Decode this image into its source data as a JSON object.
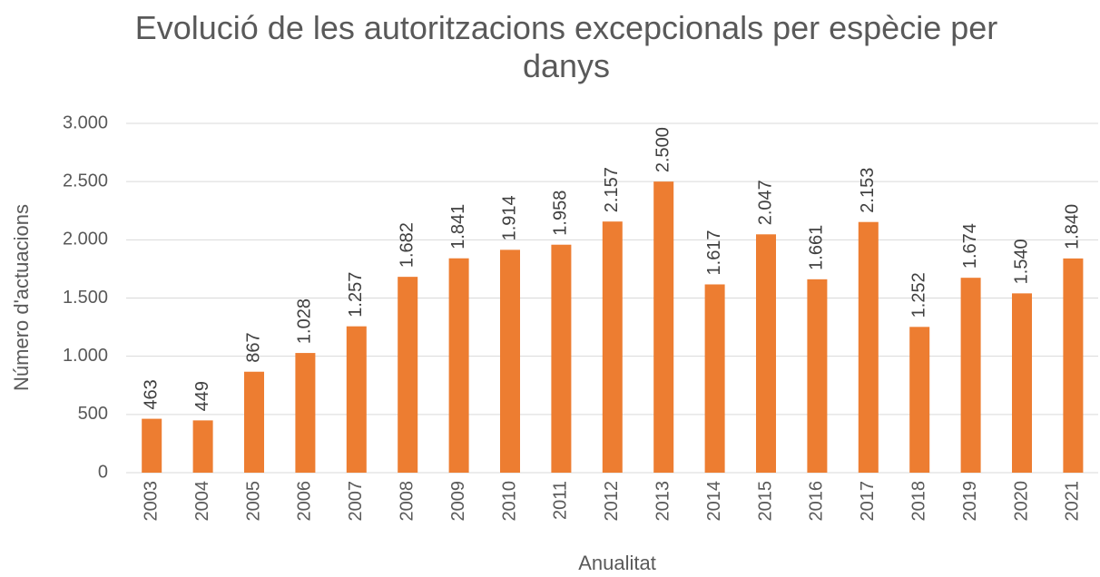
{
  "chart_data": {
    "type": "bar",
    "title": "Evolució de les autoritzacions excepcionals per espècie per danys",
    "y_label": "Número d'actuacions",
    "x_label": "Anualitat",
    "categories": [
      "2003",
      "2004",
      "2005",
      "2006",
      "2007",
      "2008",
      "2009",
      "2010",
      "2011",
      "2012",
      "2013",
      "2014",
      "2015",
      "2016",
      "2017",
      "2018",
      "2019",
      "2020",
      "2021"
    ],
    "values": [
      463,
      449,
      867,
      1028,
      1257,
      1682,
      1841,
      1914,
      1958,
      2157,
      2500,
      1617,
      2047,
      1661,
      2153,
      1252,
      1674,
      1540,
      1840
    ],
    "value_labels": [
      "463",
      "449",
      "867",
      "1.028",
      "1.257",
      "1.682",
      "1.841",
      "1.914",
      "1.958",
      "2.157",
      "2.500",
      "1.617",
      "2.047",
      "1.661",
      "2.153",
      "1.252",
      "1.674",
      "1.540",
      "1.840"
    ],
    "color": "#ed7d31",
    "ylim": [
      0,
      3000
    ],
    "yticks": [
      0,
      500,
      {
        "value": 1000,
        "label": "1.000"
      },
      {
        "value": 1500,
        "label": "1.500"
      },
      {
        "value": 2000,
        "label": "2.000"
      },
      {
        "value": 2500,
        "label": "2.500"
      },
      {
        "value": 3000,
        "label": "3.000"
      }
    ],
    "grid": true
  }
}
